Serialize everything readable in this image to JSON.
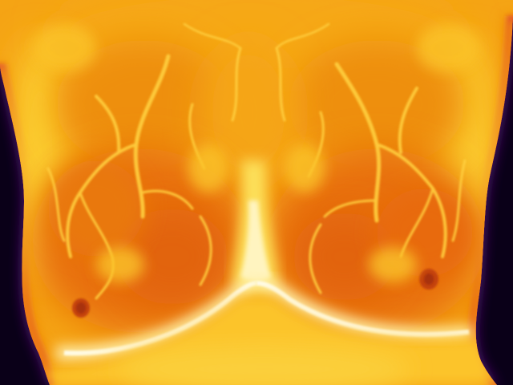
{
  "image": {
    "kind": "thermal-infrared-photograph",
    "palette": "ironbow",
    "colors": {
      "background": "#0a0018",
      "cold_edge": "#3a0a6a",
      "edge_red": "#c0104a",
      "body_deep": "#e8700a",
      "body_mid": "#f29a12",
      "body_warm": "#fbc624",
      "body_hot": "#ffe86a",
      "body_hottest": "#fffbe6",
      "vein": "#ffd040"
    }
  }
}
